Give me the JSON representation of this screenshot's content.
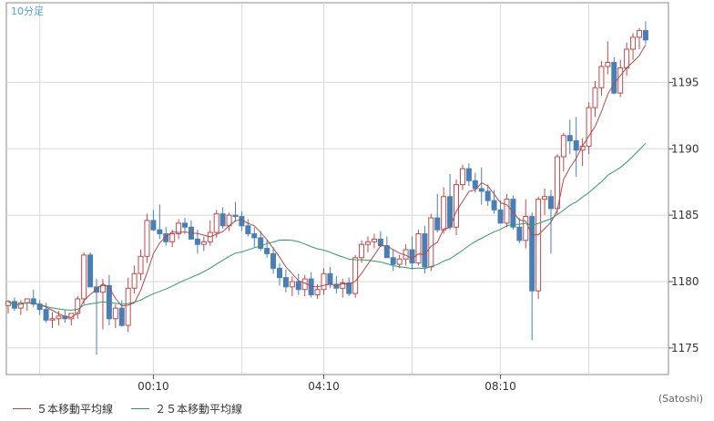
{
  "chart_data": {
    "type": "candlestick",
    "title": "10分足",
    "y_ticks": [
      1175,
      1180,
      1185,
      1190,
      1195
    ],
    "ylim": [
      1173,
      1201
    ],
    "x_ticks": [
      "00:10",
      "04:10",
      "08:10"
    ],
    "grid": true,
    "legend": [
      {
        "name": "５本移動平均線",
        "color": "#b04a4a"
      },
      {
        "name": "２５本移動平均線",
        "color": "#2e9a6a"
      }
    ],
    "credit": "(Satoshi)",
    "colors": {
      "up": "#c04a4a",
      "down": "#4a7fb5",
      "grid": "#d8d8d8",
      "axis": "#555555",
      "title": "#4aa6d8"
    },
    "candles": [
      [
        1178.2,
        1178.6,
        1177.6,
        1178.5
      ],
      [
        1178.5,
        1178.8,
        1177.8,
        1178.0
      ],
      [
        1178.0,
        1178.6,
        1177.5,
        1178.4
      ],
      [
        1178.4,
        1178.7,
        1177.8,
        1178.7
      ],
      [
        1178.7,
        1179.4,
        1178.1,
        1178.3
      ],
      [
        1178.3,
        1178.6,
        1177.5,
        1177.9
      ],
      [
        1177.9,
        1178.4,
        1176.9,
        1177.1
      ],
      [
        1177.1,
        1177.7,
        1176.5,
        1177.2
      ],
      [
        1177.2,
        1177.8,
        1176.7,
        1177.4
      ],
      [
        1177.4,
        1177.9,
        1176.9,
        1177.2
      ],
      [
        1177.2,
        1177.5,
        1176.7,
        1177.6
      ],
      [
        1177.6,
        1178.9,
        1177.2,
        1178.7
      ],
      [
        1178.7,
        1182.2,
        1178.3,
        1182.0
      ],
      [
        1182.0,
        1182.2,
        1179.6,
        1179.6
      ],
      [
        1179.6,
        1180.2,
        1174.5,
        1179.2
      ],
      [
        1179.2,
        1180.2,
        1176.4,
        1179.7
      ],
      [
        1179.7,
        1180.5,
        1176.7,
        1177.2
      ],
      [
        1177.2,
        1178.3,
        1176.5,
        1178.0
      ],
      [
        1178.0,
        1178.6,
        1176.6,
        1176.7
      ],
      [
        1176.7,
        1180.3,
        1176.2,
        1179.5
      ],
      [
        1179.5,
        1181.2,
        1179.1,
        1180.6
      ],
      [
        1180.6,
        1182.4,
        1180.1,
        1181.9
      ],
      [
        1181.9,
        1185.1,
        1181.4,
        1184.6
      ],
      [
        1184.6,
        1185.4,
        1183.8,
        1183.9
      ],
      [
        1183.9,
        1185.8,
        1183.2,
        1183.6
      ],
      [
        1183.6,
        1184.1,
        1182.7,
        1183.0
      ],
      [
        1183.0,
        1183.9,
        1182.6,
        1183.6
      ],
      [
        1183.6,
        1184.7,
        1183.2,
        1184.4
      ],
      [
        1184.4,
        1184.8,
        1183.6,
        1184.1
      ],
      [
        1184.1,
        1184.6,
        1183.4,
        1183.2
      ],
      [
        1183.2,
        1183.9,
        1182.1,
        1182.8
      ],
      [
        1182.8,
        1183.4,
        1182.3,
        1183.0
      ],
      [
        1183.0,
        1184.6,
        1182.7,
        1183.7
      ],
      [
        1183.7,
        1185.4,
        1183.3,
        1185.1
      ],
      [
        1185.1,
        1185.6,
        1184.0,
        1184.2
      ],
      [
        1184.2,
        1185.2,
        1183.8,
        1185.0
      ],
      [
        1185.0,
        1186.0,
        1184.5,
        1184.9
      ],
      [
        1184.9,
        1185.3,
        1183.8,
        1184.2
      ],
      [
        1184.2,
        1184.7,
        1183.4,
        1183.6
      ],
      [
        1183.6,
        1184.1,
        1182.6,
        1183.3
      ],
      [
        1183.3,
        1183.8,
        1182.3,
        1182.5
      ],
      [
        1182.5,
        1183.1,
        1181.8,
        1182.1
      ],
      [
        1182.1,
        1182.6,
        1180.6,
        1181.0
      ],
      [
        1181.0,
        1181.4,
        1179.7,
        1180.3
      ],
      [
        1180.3,
        1180.9,
        1179.2,
        1179.6
      ],
      [
        1179.6,
        1180.4,
        1178.9,
        1180.0
      ],
      [
        1180.0,
        1180.6,
        1179.0,
        1179.4
      ],
      [
        1179.4,
        1180.5,
        1178.9,
        1180.2
      ],
      [
        1180.2,
        1180.7,
        1178.8,
        1179.0
      ],
      [
        1179.0,
        1179.8,
        1178.7,
        1179.4
      ],
      [
        1179.4,
        1181.0,
        1179.0,
        1180.6
      ],
      [
        1180.6,
        1181.1,
        1179.5,
        1179.8
      ],
      [
        1179.8,
        1180.4,
        1179.1,
        1179.5
      ],
      [
        1179.5,
        1180.2,
        1178.8,
        1179.9
      ],
      [
        1179.9,
        1180.3,
        1178.9,
        1179.1
      ],
      [
        1179.1,
        1182.0,
        1178.8,
        1181.8
      ],
      [
        1181.8,
        1183.1,
        1181.4,
        1182.8
      ],
      [
        1182.8,
        1183.4,
        1182.2,
        1183.0
      ],
      [
        1183.0,
        1183.6,
        1182.5,
        1183.2
      ],
      [
        1183.2,
        1183.8,
        1182.6,
        1182.7
      ],
      [
        1182.7,
        1183.4,
        1181.9,
        1181.8
      ],
      [
        1181.8,
        1182.4,
        1180.8,
        1181.3
      ],
      [
        1181.3,
        1182.0,
        1181.0,
        1181.7
      ],
      [
        1181.7,
        1182.8,
        1181.2,
        1182.4
      ],
      [
        1182.4,
        1183.4,
        1180.9,
        1181.4
      ],
      [
        1181.4,
        1183.9,
        1181.2,
        1183.6
      ],
      [
        1183.6,
        1184.2,
        1180.6,
        1181.1
      ],
      [
        1181.1,
        1185.1,
        1180.8,
        1184.8
      ],
      [
        1184.8,
        1186.6,
        1183.7,
        1183.9
      ],
      [
        1183.9,
        1187.1,
        1183.6,
        1186.4
      ],
      [
        1186.4,
        1188.1,
        1183.9,
        1184.1
      ],
      [
        1184.1,
        1187.7,
        1183.5,
        1187.3
      ],
      [
        1187.3,
        1188.8,
        1186.9,
        1188.5
      ],
      [
        1188.5,
        1188.9,
        1187.2,
        1187.6
      ],
      [
        1187.6,
        1188.2,
        1186.7,
        1187.0
      ],
      [
        1187.0,
        1188.6,
        1185.8,
        1186.8
      ],
      [
        1186.8,
        1187.3,
        1185.7,
        1186.1
      ],
      [
        1186.1,
        1186.9,
        1185.1,
        1185.4
      ],
      [
        1185.4,
        1186.1,
        1184.5,
        1184.4
      ],
      [
        1184.4,
        1186.6,
        1184.1,
        1186.2
      ],
      [
        1186.2,
        1186.5,
        1183.9,
        1184.1
      ],
      [
        1184.1,
        1184.8,
        1182.9,
        1183.1
      ],
      [
        1183.1,
        1186.2,
        1182.5,
        1184.9
      ],
      [
        1184.9,
        1185.2,
        1175.6,
        1179.3
      ],
      [
        1179.3,
        1186.4,
        1178.7,
        1186.2
      ],
      [
        1186.2,
        1187.0,
        1185.0,
        1186.4
      ],
      [
        1186.4,
        1186.9,
        1182.1,
        1185.5
      ],
      [
        1185.5,
        1189.6,
        1185.1,
        1189.4
      ],
      [
        1189.4,
        1191.2,
        1188.3,
        1191.0
      ],
      [
        1191.0,
        1192.2,
        1189.6,
        1190.6
      ],
      [
        1190.6,
        1192.4,
        1187.9,
        1189.9
      ],
      [
        1189.9,
        1190.8,
        1188.7,
        1190.2
      ],
      [
        1190.2,
        1193.5,
        1189.6,
        1193.1
      ],
      [
        1193.1,
        1195.1,
        1192.4,
        1194.6
      ],
      [
        1194.6,
        1196.6,
        1194.0,
        1196.2
      ],
      [
        1196.2,
        1198.1,
        1195.6,
        1196.5
      ],
      [
        1196.5,
        1196.9,
        1194.1,
        1194.2
      ],
      [
        1194.2,
        1196.7,
        1193.9,
        1196.1
      ],
      [
        1196.1,
        1198.0,
        1195.5,
        1197.5
      ],
      [
        1197.5,
        1198.7,
        1196.7,
        1198.4
      ],
      [
        1198.4,
        1199.1,
        1197.5,
        1198.9
      ],
      [
        1198.9,
        1199.6,
        1197.9,
        1198.2
      ]
    ]
  }
}
